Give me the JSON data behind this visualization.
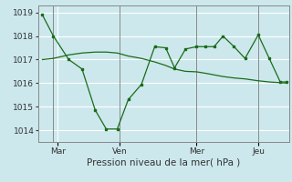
{
  "background_color": "#cce8ec",
  "grid_color": "#ffffff",
  "line_color": "#1a6b1a",
  "marker_color": "#1a6b1a",
  "xlabel": "Pression niveau de la mer( hPa )",
  "ylim": [
    1013.5,
    1019.3
  ],
  "xlim": [
    -0.2,
    11.2
  ],
  "yticks": [
    1014,
    1015,
    1016,
    1017,
    1018,
    1019
  ],
  "day_labels": [
    "Mar",
    "Ven",
    "Mer",
    "Jeu"
  ],
  "day_positions": [
    0.7,
    3.5,
    7.0,
    9.8
  ],
  "vline_positions": [
    0.5,
    3.5,
    7.0,
    9.8
  ],
  "series1_x": [
    0.0,
    0.5,
    1.2,
    1.8,
    2.4,
    2.9,
    3.4,
    3.9,
    4.5,
    5.1,
    5.6,
    6.0,
    6.5,
    7.0,
    7.4,
    7.8,
    8.2,
    8.7,
    9.2,
    9.8,
    10.3,
    10.8,
    11.1
  ],
  "series1_y": [
    1018.9,
    1018.0,
    1017.0,
    1016.6,
    1014.85,
    1014.05,
    1014.05,
    1015.3,
    1015.95,
    1017.55,
    1017.5,
    1016.65,
    1017.45,
    1017.55,
    1017.55,
    1017.55,
    1018.0,
    1017.55,
    1017.05,
    1018.05,
    1017.05,
    1016.05,
    1016.05
  ],
  "series2_x": [
    0.0,
    0.5,
    1.2,
    1.8,
    2.4,
    2.9,
    3.4,
    3.9,
    4.5,
    5.1,
    5.6,
    6.0,
    6.5,
    7.0,
    7.4,
    7.8,
    8.2,
    8.7,
    9.2,
    9.8,
    10.3,
    10.8,
    11.1
  ],
  "series2_y": [
    1017.0,
    1017.05,
    1017.2,
    1017.28,
    1017.32,
    1017.32,
    1017.28,
    1017.15,
    1017.05,
    1016.9,
    1016.75,
    1016.6,
    1016.5,
    1016.48,
    1016.42,
    1016.35,
    1016.28,
    1016.22,
    1016.18,
    1016.1,
    1016.05,
    1016.02,
    1016.0
  ]
}
